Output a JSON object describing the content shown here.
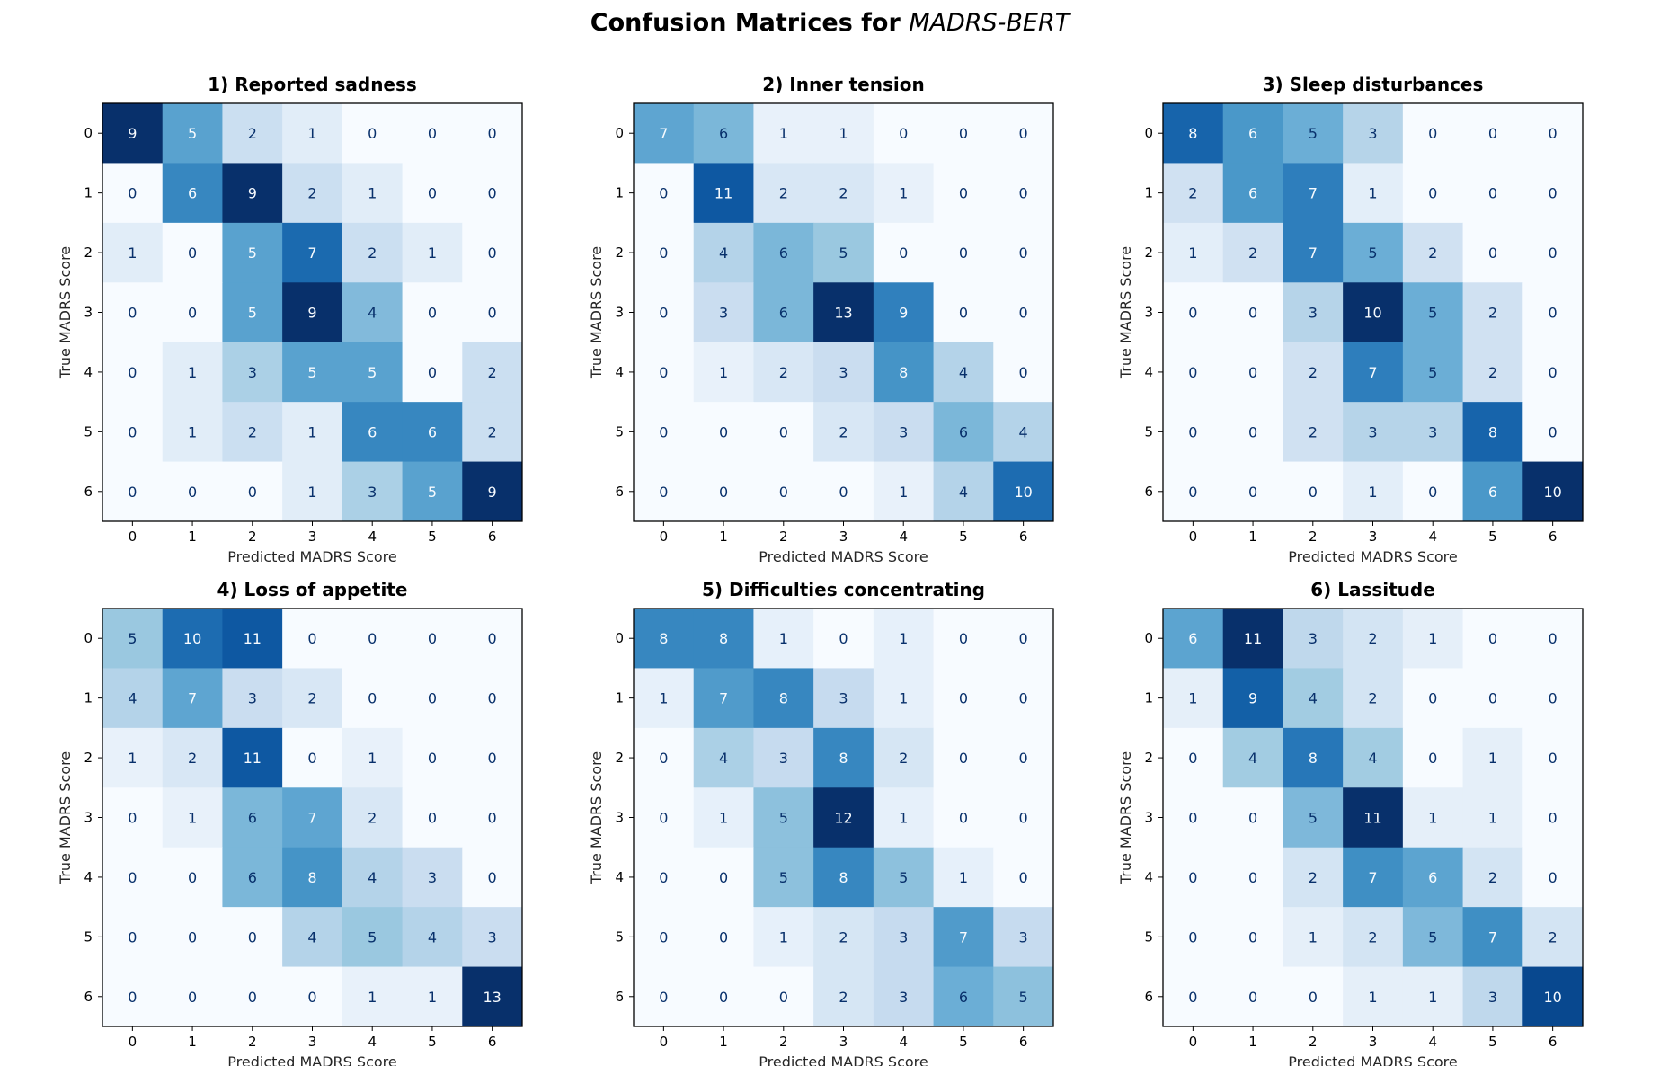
{
  "title": {
    "prefix": "Confusion Matrices for ",
    "model": "MADRS-BERT"
  },
  "chart_data": [
    {
      "type": "heatmap",
      "title": "1) Reported sadness",
      "xlabel": "Predicted MADRS Score",
      "ylabel": "True MADRS Score",
      "x_categories": [
        "0",
        "1",
        "2",
        "3",
        "4",
        "5",
        "6"
      ],
      "y_categories": [
        "0",
        "1",
        "2",
        "3",
        "4",
        "5",
        "6"
      ],
      "colormap": "Blues",
      "values": [
        [
          9,
          5,
          2,
          1,
          0,
          0,
          0
        ],
        [
          0,
          6,
          9,
          2,
          1,
          0,
          0
        ],
        [
          1,
          0,
          5,
          7,
          2,
          1,
          0
        ],
        [
          0,
          0,
          5,
          9,
          4,
          0,
          0
        ],
        [
          0,
          1,
          3,
          5,
          5,
          0,
          2
        ],
        [
          0,
          1,
          2,
          1,
          6,
          6,
          2
        ],
        [
          0,
          0,
          0,
          1,
          3,
          5,
          9
        ]
      ]
    },
    {
      "type": "heatmap",
      "title": "2) Inner tension",
      "xlabel": "Predicted MADRS Score",
      "ylabel": "True MADRS Score",
      "x_categories": [
        "0",
        "1",
        "2",
        "3",
        "4",
        "5",
        "6"
      ],
      "y_categories": [
        "0",
        "1",
        "2",
        "3",
        "4",
        "5",
        "6"
      ],
      "colormap": "Blues",
      "values": [
        [
          7,
          6,
          1,
          1,
          0,
          0,
          0
        ],
        [
          0,
          11,
          2,
          2,
          1,
          0,
          0
        ],
        [
          0,
          4,
          6,
          5,
          0,
          0,
          0
        ],
        [
          0,
          3,
          6,
          13,
          9,
          0,
          0
        ],
        [
          0,
          1,
          2,
          3,
          8,
          4,
          0
        ],
        [
          0,
          0,
          0,
          2,
          3,
          6,
          4
        ],
        [
          0,
          0,
          0,
          0,
          1,
          4,
          10
        ]
      ]
    },
    {
      "type": "heatmap",
      "title": "3) Sleep disturbances",
      "xlabel": "Predicted MADRS Score",
      "ylabel": "True MADRS Score",
      "x_categories": [
        "0",
        "1",
        "2",
        "3",
        "4",
        "5",
        "6"
      ],
      "y_categories": [
        "0",
        "1",
        "2",
        "3",
        "4",
        "5",
        "6"
      ],
      "colormap": "Blues",
      "values": [
        [
          8,
          6,
          5,
          3,
          0,
          0,
          0
        ],
        [
          2,
          6,
          7,
          1,
          0,
          0,
          0
        ],
        [
          1,
          2,
          7,
          5,
          2,
          0,
          0
        ],
        [
          0,
          0,
          3,
          10,
          5,
          2,
          0
        ],
        [
          0,
          0,
          2,
          7,
          5,
          2,
          0
        ],
        [
          0,
          0,
          2,
          3,
          3,
          8,
          0
        ],
        [
          0,
          0,
          0,
          1,
          0,
          6,
          10
        ]
      ]
    },
    {
      "type": "heatmap",
      "title": "4) Loss of appetite",
      "xlabel": "Predicted MADRS Score",
      "ylabel": "True MADRS Score",
      "x_categories": [
        "0",
        "1",
        "2",
        "3",
        "4",
        "5",
        "6"
      ],
      "y_categories": [
        "0",
        "1",
        "2",
        "3",
        "4",
        "5",
        "6"
      ],
      "colormap": "Blues",
      "values": [
        [
          5,
          10,
          11,
          0,
          0,
          0,
          0
        ],
        [
          4,
          7,
          3,
          2,
          0,
          0,
          0
        ],
        [
          1,
          2,
          11,
          0,
          1,
          0,
          0
        ],
        [
          0,
          1,
          6,
          7,
          2,
          0,
          0
        ],
        [
          0,
          0,
          6,
          8,
          4,
          3,
          0
        ],
        [
          0,
          0,
          0,
          4,
          5,
          4,
          3
        ],
        [
          0,
          0,
          0,
          0,
          1,
          1,
          13
        ]
      ]
    },
    {
      "type": "heatmap",
      "title": "5) Difficulties concentrating",
      "xlabel": "Predicted MADRS Score",
      "ylabel": "True MADRS Score",
      "x_categories": [
        "0",
        "1",
        "2",
        "3",
        "4",
        "5",
        "6"
      ],
      "y_categories": [
        "0",
        "1",
        "2",
        "3",
        "4",
        "5",
        "6"
      ],
      "colormap": "Blues",
      "values": [
        [
          8,
          8,
          1,
          0,
          1,
          0,
          0
        ],
        [
          1,
          7,
          8,
          3,
          1,
          0,
          0
        ],
        [
          0,
          4,
          3,
          8,
          2,
          0,
          0
        ],
        [
          0,
          1,
          5,
          12,
          1,
          0,
          0
        ],
        [
          0,
          0,
          5,
          8,
          5,
          1,
          0
        ],
        [
          0,
          0,
          1,
          2,
          3,
          7,
          3
        ],
        [
          0,
          0,
          0,
          2,
          3,
          6,
          5
        ]
      ]
    },
    {
      "type": "heatmap",
      "title": "6) Lassitude",
      "xlabel": "Predicted MADRS Score",
      "ylabel": "True MADRS Score",
      "x_categories": [
        "0",
        "1",
        "2",
        "3",
        "4",
        "5",
        "6"
      ],
      "y_categories": [
        "0",
        "1",
        "2",
        "3",
        "4",
        "5",
        "6"
      ],
      "colormap": "Blues",
      "values": [
        [
          6,
          11,
          3,
          2,
          1,
          0,
          0
        ],
        [
          1,
          9,
          4,
          2,
          0,
          0,
          0
        ],
        [
          0,
          4,
          8,
          4,
          0,
          1,
          0
        ],
        [
          0,
          0,
          5,
          11,
          1,
          1,
          0
        ],
        [
          0,
          0,
          2,
          7,
          6,
          2,
          0
        ],
        [
          0,
          0,
          1,
          2,
          5,
          7,
          2
        ],
        [
          0,
          0,
          0,
          1,
          1,
          3,
          10
        ]
      ]
    }
  ]
}
